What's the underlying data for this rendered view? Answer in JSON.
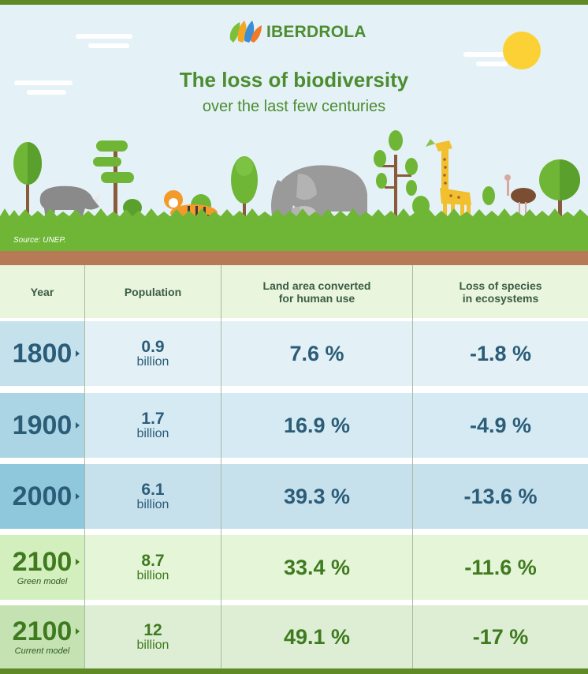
{
  "brand": {
    "name": "IBERDROLA"
  },
  "title": {
    "main": "The loss of biodiversity",
    "sub": "over the last few centuries"
  },
  "source": "Source: UNEP.",
  "columns": {
    "year": "Year",
    "population": "Population",
    "land": "Land area converted for human use",
    "species": "Loss of species in ecosystems"
  },
  "rows": [
    {
      "year": "1800",
      "note": "",
      "population": "0.9",
      "pop_unit": "billion",
      "land": "7.6 %",
      "species": "-1.8 %"
    },
    {
      "year": "1900",
      "note": "",
      "population": "1.7",
      "pop_unit": "billion",
      "land": "16.9 %",
      "species": "-4.9 %"
    },
    {
      "year": "2000",
      "note": "",
      "population": "6.1",
      "pop_unit": "billion",
      "land": "39.3 %",
      "species": "-13.6 %"
    },
    {
      "year": "2100",
      "note": "Green model",
      "population": "8.7",
      "pop_unit": "billion",
      "land": "33.4 %",
      "species": "-11.6 %"
    },
    {
      "year": "2100",
      "note": "Current model",
      "population": "12",
      "pop_unit": "billion",
      "land": "49.1 %",
      "species": "-17 %"
    }
  ],
  "colors": {
    "brand_green": "#4d8c2f",
    "grass": "#6fb636",
    "soil": "#b77a56",
    "text_blue": "#2b5c78",
    "text_green": "#3f7a1f"
  }
}
